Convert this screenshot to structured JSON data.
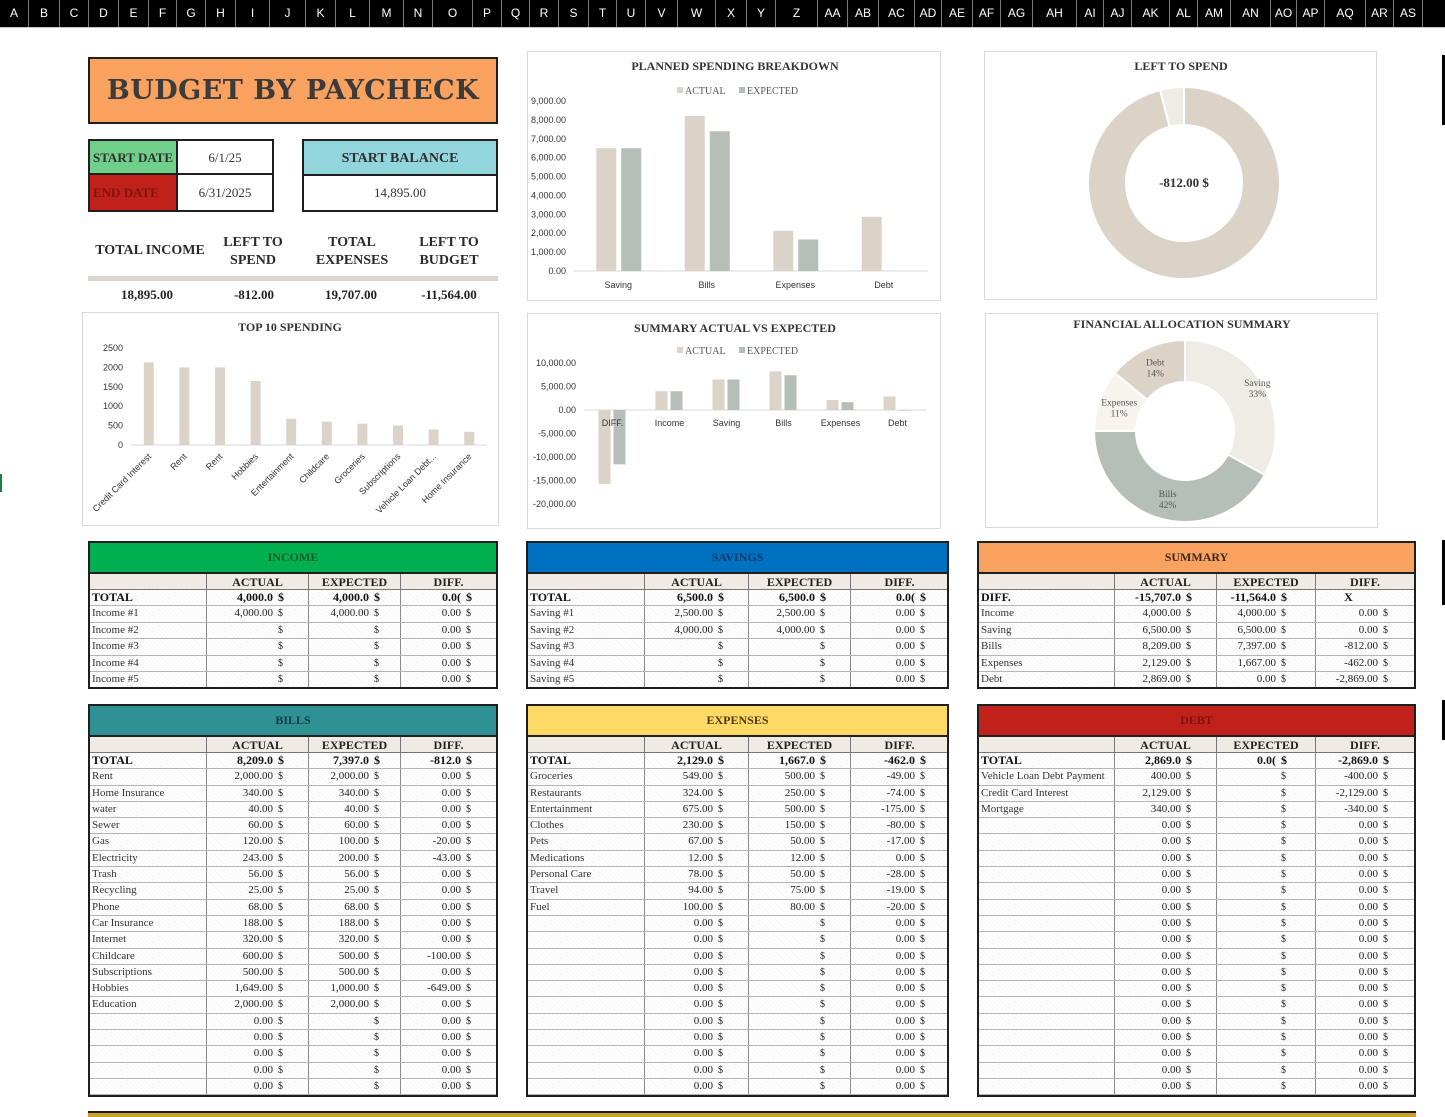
{
  "column_headers": [
    "A",
    "B",
    "C",
    "D",
    "E",
    "F",
    "G",
    "H",
    "I",
    "J",
    "K",
    "L",
    "M",
    "N",
    "O",
    "P",
    "Q",
    "R",
    "S",
    "T",
    "U",
    "V",
    "W",
    "X",
    "Y",
    "Z",
    "AA",
    "AB",
    "AC",
    "AD",
    "AE",
    "AF",
    "AG",
    "AH",
    "AI",
    "AJ",
    "AK",
    "AL",
    "AM",
    "AN",
    "AO",
    "AP",
    "AQ",
    "AR",
    "AS"
  ],
  "title": "BUDGET BY PAYCHECK",
  "dates": {
    "start_label": "START DATE",
    "start_value": "6/1/25",
    "end_label": "END DATE",
    "end_value": "6/31/2025"
  },
  "start_balance": {
    "label": "START BALANCE",
    "value": "14,895.00"
  },
  "metrics": [
    {
      "label": "TOTAL INCOME",
      "value": "18,895.00"
    },
    {
      "label": "LEFT TO SPEND",
      "value": "-812.00"
    },
    {
      "label": "TOTAL EXPENSES",
      "value": "19,707.00"
    },
    {
      "label": "LEFT TO BUDGET",
      "value": "-11,564.00"
    }
  ],
  "colors": {
    "income": "#00b050",
    "savings": "#0070c0",
    "summary": "#f9a15f",
    "bills": "#2e9295",
    "expenses": "#ffd966",
    "debt": "#c0211a",
    "start_date": "#70d08a",
    "end_date": "#c0211a",
    "start_balance": "#92d5dc",
    "actual_bar": "#dcd3c8",
    "expected_bar": "#b6bfb7"
  },
  "chart_data": [
    {
      "type": "bar",
      "title": "PLANNED SPENDING BREAKDOWN",
      "categories": [
        "Saving",
        "Bills",
        "Expenses",
        "Debt"
      ],
      "series": [
        {
          "name": "ACTUAL",
          "values": [
            6500,
            8209,
            2129,
            2869
          ]
        },
        {
          "name": "EXPECTED",
          "values": [
            6500,
            7397,
            1667,
            0
          ]
        }
      ],
      "ylim": [
        0,
        9000
      ],
      "yticks": [
        "9,000.00",
        "8,000.00",
        "7,000.00",
        "6,000.00",
        "5,000.00",
        "4,000.00",
        "3,000.00",
        "2,000.00",
        "1,000.00",
        "0.00"
      ],
      "legend": "top"
    },
    {
      "type": "pie",
      "title": "LEFT TO SPEND",
      "center_label": "-812.00 $",
      "values": [
        96,
        4
      ]
    },
    {
      "type": "bar",
      "title": "TOP 10 SPENDING",
      "categories": [
        "Credit Card Interest",
        "Rent",
        "Rent",
        "Hobbies",
        "Entertainment",
        "Childcare",
        "Groceries",
        "Subscriptions",
        "Vehicle Loan Debt...",
        "Home Insurance"
      ],
      "values": [
        2129,
        2000,
        2000,
        1649,
        675,
        600,
        549,
        500,
        400,
        340
      ],
      "ylim": [
        0,
        2500
      ],
      "yticks": [
        "2500",
        "2000",
        "1500",
        "1000",
        "500",
        "0"
      ]
    },
    {
      "type": "bar",
      "title": "SUMMARY ACTUAL VS EXPECTED",
      "categories": [
        "DIFF.",
        "Income",
        "Saving",
        "Bills",
        "Expenses",
        "Debt"
      ],
      "series": [
        {
          "name": "ACTUAL",
          "values": [
            -15707,
            4000,
            6500,
            8209,
            2129,
            2869
          ]
        },
        {
          "name": "EXPECTED",
          "values": [
            -11564,
            4000,
            6500,
            7397,
            1667,
            0
          ]
        }
      ],
      "ylim": [
        -20000,
        10000
      ],
      "yticks": [
        "10,000.00",
        "5,000.00",
        "0.00",
        "-5,000.00",
        "-10,000.00",
        "-15,000.00",
        "-20,000.00"
      ],
      "legend": "top"
    },
    {
      "type": "pie",
      "title": "FINANCIAL ALLOCATION SUMMARY",
      "slices": [
        {
          "name": "Saving",
          "value": 33,
          "label": "33%"
        },
        {
          "name": "Bills",
          "value": 42,
          "label": "42%"
        },
        {
          "name": "Expenses",
          "value": 11,
          "label": "11%"
        },
        {
          "name": "Debt",
          "value": 14,
          "label": "14%"
        }
      ]
    }
  ],
  "tables": {
    "income": {
      "title": "INCOME",
      "headers": [
        "ACTUAL",
        "EXPECTED",
        "DIFF."
      ],
      "rows": [
        [
          "TOTAL",
          "4,000.0",
          "$",
          "4,000.0",
          "$",
          "0.0(",
          "$"
        ],
        [
          "Income #1",
          "4,000.00",
          "$",
          "4,000.00",
          "$",
          "0.00",
          "$"
        ],
        [
          "Income #2",
          "",
          "$",
          "",
          "$",
          "0.00",
          "$"
        ],
        [
          "Income #3",
          "",
          "$",
          "",
          "$",
          "0.00",
          "$"
        ],
        [
          "Income #4",
          "",
          "$",
          "",
          "$",
          "0.00",
          "$"
        ],
        [
          "Income #5",
          "",
          "$",
          "",
          "$",
          "0.00",
          "$"
        ]
      ]
    },
    "savings": {
      "title": "SAVINGS",
      "headers": [
        "ACTUAL",
        "EXPECTED",
        "DIFF."
      ],
      "rows": [
        [
          "TOTAL",
          "6,500.0",
          "$",
          "6,500.0",
          "$",
          "0.0(",
          "$"
        ],
        [
          "Saving #1",
          "2,500.00",
          "$",
          "2,500.00",
          "$",
          "0.00",
          "$"
        ],
        [
          "Saving #2",
          "4,000.00",
          "$",
          "4,000.00",
          "$",
          "0.00",
          "$"
        ],
        [
          "Saving #3",
          "",
          "$",
          "",
          "$",
          "0.00",
          "$"
        ],
        [
          "Saving #4",
          "",
          "$",
          "",
          "$",
          "0.00",
          "$"
        ],
        [
          "Saving #5",
          "",
          "$",
          "",
          "$",
          "0.00",
          "$"
        ]
      ]
    },
    "summary": {
      "title": "SUMMARY",
      "headers": [
        "ACTUAL",
        "EXPECTED",
        "DIFF."
      ],
      "rows": [
        [
          "DIFF.",
          "-15,707.0",
          "$",
          "-11,564.0",
          "$",
          "X",
          ""
        ],
        [
          "Income",
          "4,000.00",
          "$",
          "4,000.00",
          "$",
          "0.00",
          "$"
        ],
        [
          "Saving",
          "6,500.00",
          "$",
          "6,500.00",
          "$",
          "0.00",
          "$"
        ],
        [
          "Bills",
          "8,209.00",
          "$",
          "7,397.00",
          "$",
          "-812.00",
          "$"
        ],
        [
          "Expenses",
          "2,129.00",
          "$",
          "1,667.00",
          "$",
          "-462.00",
          "$"
        ],
        [
          "Debt",
          "2,869.00",
          "$",
          "0.00",
          "$",
          "-2,869.00",
          "$"
        ]
      ]
    },
    "bills": {
      "title": "BILLS",
      "headers": [
        "ACTUAL",
        "EXPECTED",
        "DIFF."
      ],
      "rows": [
        [
          "TOTAL",
          "8,209.0",
          "$",
          "7,397.0",
          "$",
          "-812.0",
          "$"
        ],
        [
          "Rent",
          "2,000.00",
          "$",
          "2,000.00",
          "$",
          "0.00",
          "$"
        ],
        [
          "Home Insurance",
          "340.00",
          "$",
          "340.00",
          "$",
          "0.00",
          "$"
        ],
        [
          "water",
          "40.00",
          "$",
          "40.00",
          "$",
          "0.00",
          "$"
        ],
        [
          "Sewer",
          "60.00",
          "$",
          "60.00",
          "$",
          "0.00",
          "$"
        ],
        [
          "Gas",
          "120.00",
          "$",
          "100.00",
          "$",
          "-20.00",
          "$"
        ],
        [
          "Electricity",
          "243.00",
          "$",
          "200.00",
          "$",
          "-43.00",
          "$"
        ],
        [
          "Trash",
          "56.00",
          "$",
          "56.00",
          "$",
          "0.00",
          "$"
        ],
        [
          "Recycling",
          "25.00",
          "$",
          "25.00",
          "$",
          "0.00",
          "$"
        ],
        [
          "Phone",
          "68.00",
          "$",
          "68.00",
          "$",
          "0.00",
          "$"
        ],
        [
          "Car Insurance",
          "188.00",
          "$",
          "188.00",
          "$",
          "0.00",
          "$"
        ],
        [
          "Internet",
          "320.00",
          "$",
          "320.00",
          "$",
          "0.00",
          "$"
        ],
        [
          "Childcare",
          "600.00",
          "$",
          "500.00",
          "$",
          "-100.00",
          "$"
        ],
        [
          "Subscriptions",
          "500.00",
          "$",
          "500.00",
          "$",
          "0.00",
          "$"
        ],
        [
          "Hobbies",
          "1,649.00",
          "$",
          "1,000.00",
          "$",
          "-649.00",
          "$"
        ],
        [
          "Education",
          "2,000.00",
          "$",
          "2,000.00",
          "$",
          "0.00",
          "$"
        ],
        [
          "",
          "0.00",
          "$",
          "",
          "$",
          "0.00",
          "$"
        ],
        [
          "",
          "0.00",
          "$",
          "",
          "$",
          "0.00",
          "$"
        ],
        [
          "",
          "0.00",
          "$",
          "",
          "$",
          "0.00",
          "$"
        ],
        [
          "",
          "0.00",
          "$",
          "",
          "$",
          "0.00",
          "$"
        ],
        [
          "",
          "0.00",
          "$",
          "",
          "$",
          "0.00",
          "$"
        ]
      ]
    },
    "expenses": {
      "title": "EXPENSES",
      "headers": [
        "ACTUAL",
        "EXPECTED",
        "DIFF."
      ],
      "rows": [
        [
          "TOTAL",
          "2,129.0",
          "$",
          "1,667.0",
          "$",
          "-462.0",
          "$"
        ],
        [
          "Groceries",
          "549.00",
          "$",
          "500.00",
          "$",
          "-49.00",
          "$"
        ],
        [
          "Restaurants",
          "324.00",
          "$",
          "250.00",
          "$",
          "-74.00",
          "$"
        ],
        [
          "Entertainment",
          "675.00",
          "$",
          "500.00",
          "$",
          "-175.00",
          "$"
        ],
        [
          "Clothes",
          "230.00",
          "$",
          "150.00",
          "$",
          "-80.00",
          "$"
        ],
        [
          "Pets",
          "67.00",
          "$",
          "50.00",
          "$",
          "-17.00",
          "$"
        ],
        [
          "Medications",
          "12.00",
          "$",
          "12.00",
          "$",
          "0.00",
          "$"
        ],
        [
          "Personal Care",
          "78.00",
          "$",
          "50.00",
          "$",
          "-28.00",
          "$"
        ],
        [
          "Travel",
          "94.00",
          "$",
          "75.00",
          "$",
          "-19.00",
          "$"
        ],
        [
          "Fuel",
          "100.00",
          "$",
          "80.00",
          "$",
          "-20.00",
          "$"
        ],
        [
          "",
          "0.00",
          "$",
          "",
          "$",
          "0.00",
          "$"
        ],
        [
          "",
          "0.00",
          "$",
          "",
          "$",
          "0.00",
          "$"
        ],
        [
          "",
          "0.00",
          "$",
          "",
          "$",
          "0.00",
          "$"
        ],
        [
          "",
          "0.00",
          "$",
          "",
          "$",
          "0.00",
          "$"
        ],
        [
          "",
          "0.00",
          "$",
          "",
          "$",
          "0.00",
          "$"
        ],
        [
          "",
          "0.00",
          "$",
          "",
          "$",
          "0.00",
          "$"
        ],
        [
          "",
          "0.00",
          "$",
          "",
          "$",
          "0.00",
          "$"
        ],
        [
          "",
          "0.00",
          "$",
          "",
          "$",
          "0.00",
          "$"
        ],
        [
          "",
          "0.00",
          "$",
          "",
          "$",
          "0.00",
          "$"
        ],
        [
          "",
          "0.00",
          "$",
          "",
          "$",
          "0.00",
          "$"
        ],
        [
          "",
          "0.00",
          "$",
          "",
          "$",
          "0.00",
          "$"
        ]
      ]
    },
    "debt": {
      "title": "DEBT",
      "headers": [
        "ACTUAL",
        "EXPECTED",
        "DIFF."
      ],
      "rows": [
        [
          "TOTAL",
          "2,869.0",
          "$",
          "0.0(",
          "$",
          "-2,869.0",
          "$"
        ],
        [
          "Vehicle Loan Debt Payment",
          "400.00",
          "$",
          "",
          "$",
          "-400.00",
          "$"
        ],
        [
          "Credit Card Interest",
          "2,129.00",
          "$",
          "",
          "$",
          "-2,129.00",
          "$"
        ],
        [
          "Mortgage",
          "340.00",
          "$",
          "",
          "$",
          "-340.00",
          "$"
        ],
        [
          "",
          "0.00",
          "$",
          "",
          "$",
          "0.00",
          "$"
        ],
        [
          "",
          "0.00",
          "$",
          "",
          "$",
          "0.00",
          "$"
        ],
        [
          "",
          "0.00",
          "$",
          "",
          "$",
          "0.00",
          "$"
        ],
        [
          "",
          "0.00",
          "$",
          "",
          "$",
          "0.00",
          "$"
        ],
        [
          "",
          "0.00",
          "$",
          "",
          "$",
          "0.00",
          "$"
        ],
        [
          "",
          "0.00",
          "$",
          "",
          "$",
          "0.00",
          "$"
        ],
        [
          "",
          "0.00",
          "$",
          "",
          "$",
          "0.00",
          "$"
        ],
        [
          "",
          "0.00",
          "$",
          "",
          "$",
          "0.00",
          "$"
        ],
        [
          "",
          "0.00",
          "$",
          "",
          "$",
          "0.00",
          "$"
        ],
        [
          "",
          "0.00",
          "$",
          "",
          "$",
          "0.00",
          "$"
        ],
        [
          "",
          "0.00",
          "$",
          "",
          "$",
          "0.00",
          "$"
        ],
        [
          "",
          "0.00",
          "$",
          "",
          "$",
          "0.00",
          "$"
        ],
        [
          "",
          "0.00",
          "$",
          "",
          "$",
          "0.00",
          "$"
        ],
        [
          "",
          "0.00",
          "$",
          "",
          "$",
          "0.00",
          "$"
        ],
        [
          "",
          "0.00",
          "$",
          "",
          "$",
          "0.00",
          "$"
        ],
        [
          "",
          "0.00",
          "$",
          "",
          "$",
          "0.00",
          "$"
        ],
        [
          "",
          "0.00",
          "$",
          "",
          "$",
          "0.00",
          "$"
        ]
      ]
    }
  }
}
